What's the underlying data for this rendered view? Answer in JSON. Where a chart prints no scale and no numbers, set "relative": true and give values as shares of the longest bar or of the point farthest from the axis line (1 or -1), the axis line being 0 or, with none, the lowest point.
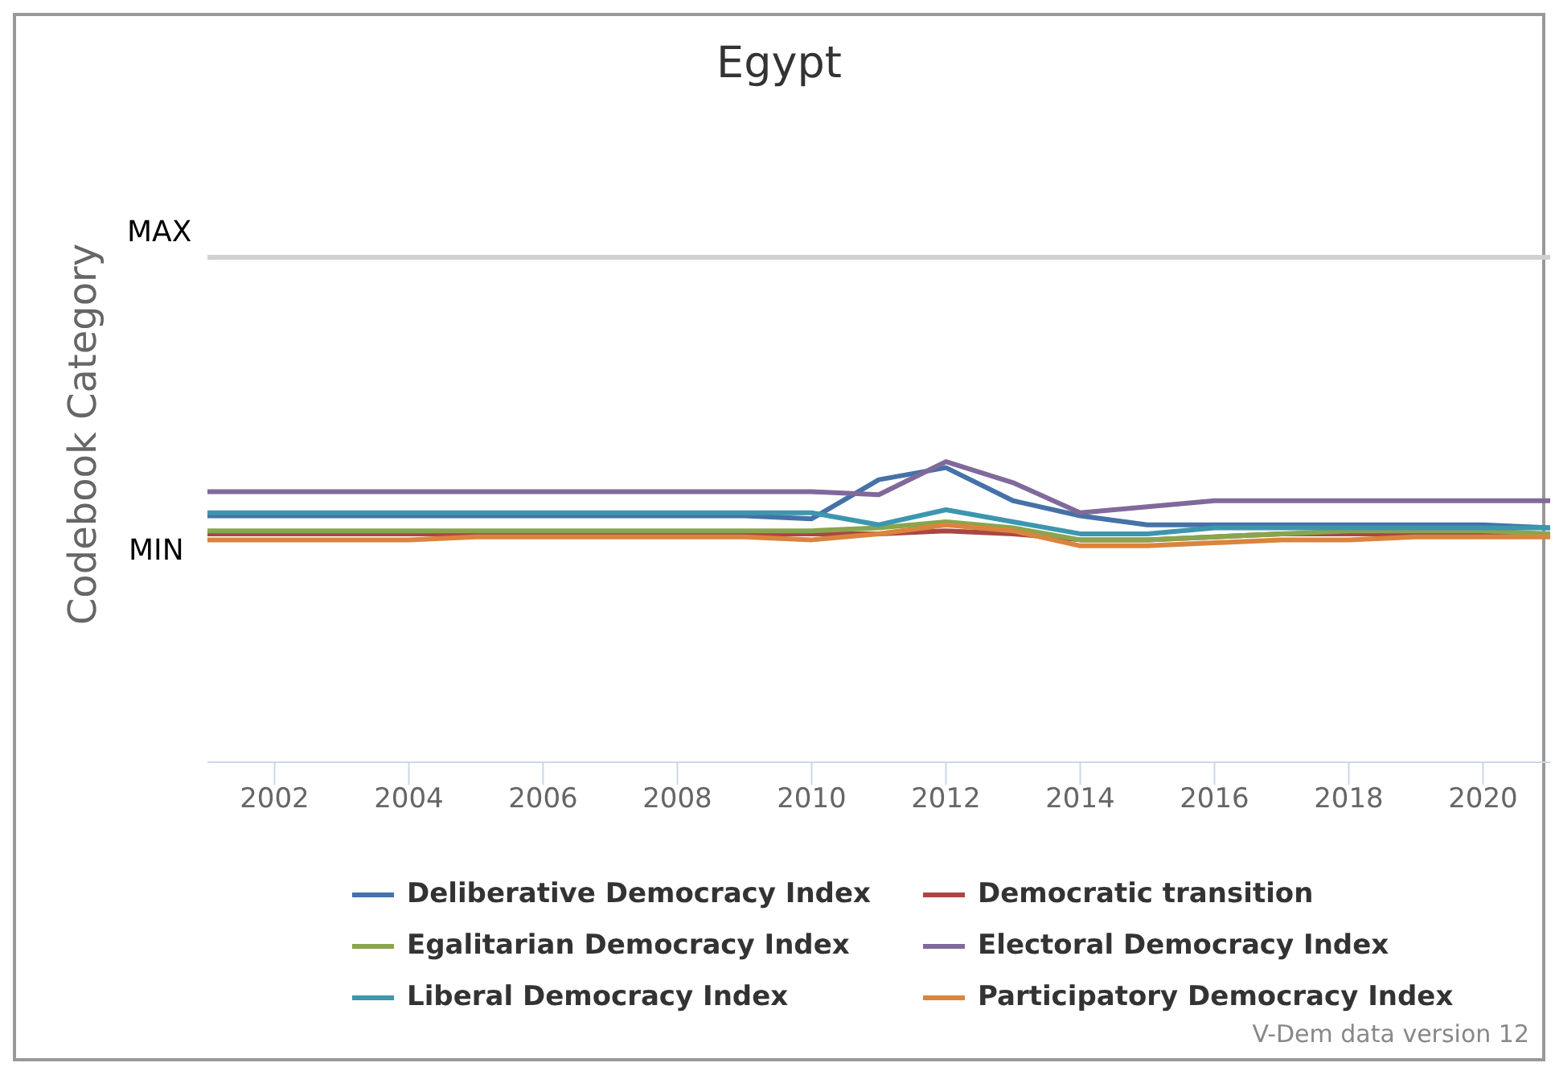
{
  "chart_data": {
    "type": "line",
    "title": "Egypt",
    "ylabel": "Codebook Category",
    "x": [
      2001,
      2002,
      2003,
      2004,
      2005,
      2006,
      2007,
      2008,
      2009,
      2010,
      2011,
      2012,
      2013,
      2014,
      2015,
      2016,
      2017,
      2018,
      2019,
      2020,
      2021
    ],
    "xlim": [
      2001,
      2021
    ],
    "xticks": [
      2002,
      2004,
      2006,
      2008,
      2010,
      2012,
      2014,
      2016,
      2018,
      2020
    ],
    "relative": true,
    "legend": "bottom",
    "marker": "none",
    "line_style": "solid",
    "ref_lines": [
      {
        "axis": "y",
        "value": 1.68,
        "label": "MAX",
        "color": "#d0d0d0"
      }
    ],
    "annotations": [
      "MIN",
      "V-Dem data version 12"
    ],
    "series": [
      {
        "name": "Deliberative Democracy Index",
        "color": "#4572a7",
        "values": [
          0.82,
          0.82,
          0.82,
          0.82,
          0.82,
          0.82,
          0.82,
          0.82,
          0.82,
          0.81,
          0.94,
          0.98,
          0.87,
          0.82,
          0.79,
          0.79,
          0.79,
          0.79,
          0.79,
          0.79,
          0.78
        ]
      },
      {
        "name": "Democratic transition",
        "color": "#aa4643",
        "values": [
          0.76,
          0.76,
          0.76,
          0.76,
          0.76,
          0.76,
          0.76,
          0.76,
          0.76,
          0.76,
          0.76,
          0.77,
          0.76,
          0.74,
          0.74,
          0.75,
          0.76,
          0.76,
          0.76,
          0.76,
          0.76
        ]
      },
      {
        "name": "Egalitarian Democracy Index",
        "color": "#89a54e",
        "values": [
          0.77,
          0.77,
          0.77,
          0.77,
          0.77,
          0.77,
          0.77,
          0.77,
          0.77,
          0.77,
          0.78,
          0.8,
          0.78,
          0.74,
          0.74,
          0.75,
          0.76,
          0.77,
          0.77,
          0.77,
          0.76
        ]
      },
      {
        "name": "Electoral Democracy Index",
        "color": "#80699b",
        "values": [
          0.9,
          0.9,
          0.9,
          0.9,
          0.9,
          0.9,
          0.9,
          0.9,
          0.9,
          0.9,
          0.89,
          1,
          0.93,
          0.83,
          0.85,
          0.87,
          0.87,
          0.87,
          0.87,
          0.87,
          0.87
        ]
      },
      {
        "name": "Liberal Democracy Index",
        "color": "#3d96ae",
        "values": [
          0.83,
          0.83,
          0.83,
          0.83,
          0.83,
          0.83,
          0.83,
          0.83,
          0.83,
          0.83,
          0.79,
          0.84,
          0.8,
          0.76,
          0.76,
          0.78,
          0.78,
          0.78,
          0.78,
          0.78,
          0.78
        ]
      },
      {
        "name": "Participatory Democracy Index",
        "color": "#db843d",
        "values": [
          0.74,
          0.74,
          0.74,
          0.74,
          0.75,
          0.75,
          0.75,
          0.75,
          0.75,
          0.74,
          0.76,
          0.79,
          0.77,
          0.72,
          0.72,
          0.73,
          0.74,
          0.74,
          0.75,
          0.75,
          0.75
        ]
      }
    ]
  }
}
